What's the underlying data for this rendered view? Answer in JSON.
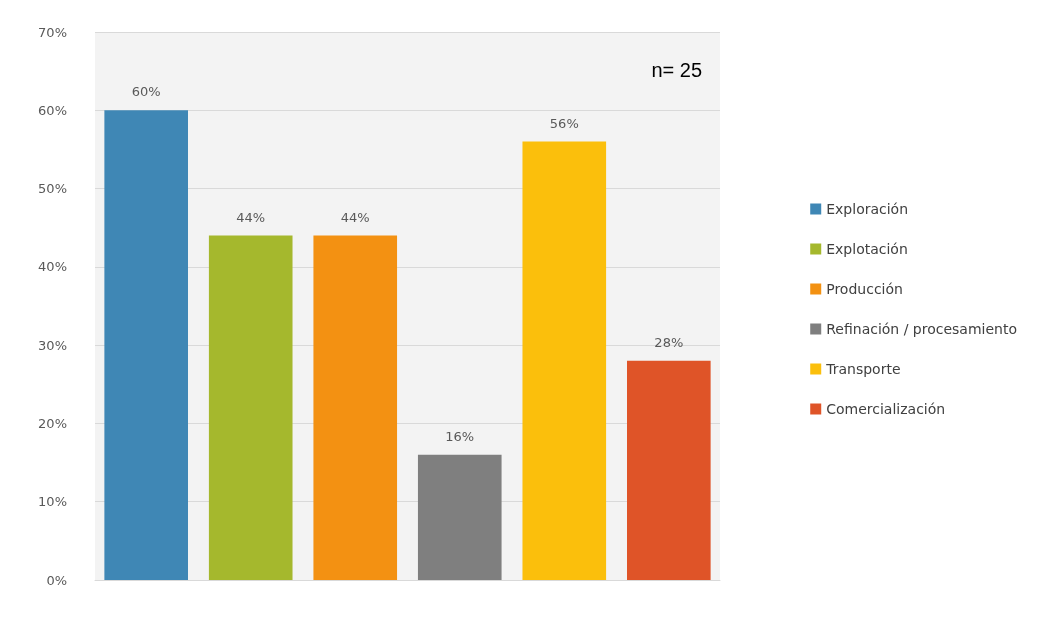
{
  "chart_data": {
    "type": "bar",
    "categories": [
      null
    ],
    "series": [
      {
        "name": "Exploración",
        "color": "#3f87b5",
        "values": [
          60
        ],
        "value_labels": [
          "60%"
        ]
      },
      {
        "name": "Explotación",
        "color": "#a5b82d",
        "values": [
          44
        ],
        "value_labels": [
          "44%"
        ]
      },
      {
        "name": "Producción",
        "color": "#f39112",
        "values": [
          44
        ],
        "value_labels": [
          "44%"
        ]
      },
      {
        "name": "Refinación / procesamiento",
        "color": "#7f7f7f",
        "values": [
          16
        ],
        "value_labels": [
          "16%"
        ]
      },
      {
        "name": "Transporte",
        "color": "#fbbf0c",
        "values": [
          56
        ],
        "value_labels": [
          "56%"
        ]
      },
      {
        "name": "Comercialización",
        "color": "#df5428",
        "values": [
          28
        ],
        "value_labels": [
          "28%"
        ]
      }
    ],
    "ylim": [
      0,
      70
    ],
    "yticks": [
      {
        "value": 0,
        "label": "0%"
      },
      {
        "value": 10,
        "label": "10%"
      },
      {
        "value": 20,
        "label": "20%"
      },
      {
        "value": 30,
        "label": "30%"
      },
      {
        "value": 40,
        "label": "40%"
      },
      {
        "value": 50,
        "label": "50%"
      },
      {
        "value": 60,
        "label": "60%"
      },
      {
        "value": 70,
        "label": "70%"
      }
    ],
    "grid": "y",
    "legend": "right",
    "annotations": [
      "n= 25"
    ]
  }
}
